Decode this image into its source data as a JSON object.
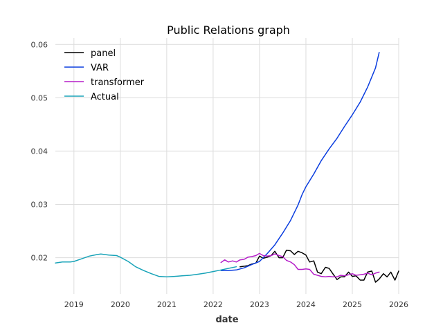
{
  "chart_data": {
    "type": "line",
    "title": "Public Relations graph",
    "xlabel": "date",
    "ylabel": "",
    "xlim": [
      2018.6,
      2026.0
    ],
    "ylim": [
      0.0132,
      0.0612
    ],
    "x_ticks": [
      {
        "value": 2019,
        "label": "2019"
      },
      {
        "value": 2020,
        "label": "2020"
      },
      {
        "value": 2021,
        "label": "2021"
      },
      {
        "value": 2022,
        "label": "2022"
      },
      {
        "value": 2023,
        "label": "2023"
      },
      {
        "value": 2024,
        "label": "2024"
      },
      {
        "value": 2025,
        "label": "2025"
      },
      {
        "value": 2026,
        "label": "2026"
      }
    ],
    "y_ticks": [
      {
        "value": 0.02,
        "label": "0.02"
      },
      {
        "value": 0.03,
        "label": "0.03"
      },
      {
        "value": 0.04,
        "label": "0.04"
      },
      {
        "value": 0.05,
        "label": "0.05"
      },
      {
        "value": 0.06,
        "label": "0.06"
      }
    ],
    "grid": true,
    "legend": "top-left",
    "series": [
      {
        "name": "panel",
        "color": "#000000",
        "points": [
          [
            2022.58,
            0.0183
          ],
          [
            2022.67,
            0.0184
          ],
          [
            2022.75,
            0.0185
          ],
          [
            2022.83,
            0.0188
          ],
          [
            2022.92,
            0.019
          ],
          [
            2023.0,
            0.0203
          ],
          [
            2023.08,
            0.0199
          ],
          [
            2023.17,
            0.0201
          ],
          [
            2023.25,
            0.0204
          ],
          [
            2023.33,
            0.0212
          ],
          [
            2023.42,
            0.02
          ],
          [
            2023.5,
            0.02
          ],
          [
            2023.58,
            0.0214
          ],
          [
            2023.67,
            0.0213
          ],
          [
            2023.75,
            0.0206
          ],
          [
            2023.83,
            0.0212
          ],
          [
            2023.92,
            0.0209
          ],
          [
            2024.0,
            0.0205
          ],
          [
            2024.08,
            0.0192
          ],
          [
            2024.17,
            0.0194
          ],
          [
            2024.25,
            0.0173
          ],
          [
            2024.33,
            0.017
          ],
          [
            2024.42,
            0.0182
          ],
          [
            2024.5,
            0.018
          ],
          [
            2024.58,
            0.017
          ],
          [
            2024.67,
            0.0159
          ],
          [
            2024.75,
            0.0164
          ],
          [
            2024.83,
            0.0164
          ],
          [
            2024.92,
            0.0173
          ],
          [
            2025.0,
            0.0165
          ],
          [
            2025.08,
            0.0166
          ],
          [
            2025.17,
            0.0158
          ],
          [
            2025.25,
            0.0158
          ],
          [
            2025.33,
            0.0173
          ],
          [
            2025.42,
            0.0175
          ],
          [
            2025.5,
            0.0154
          ],
          [
            2025.58,
            0.016
          ],
          [
            2025.67,
            0.017
          ],
          [
            2025.75,
            0.0164
          ],
          [
            2025.83,
            0.0173
          ],
          [
            2025.92,
            0.0158
          ],
          [
            2026.0,
            0.0175
          ]
        ]
      },
      {
        "name": "VAR",
        "color": "#0a3ddf",
        "points": [
          [
            2022.17,
            0.0176
          ],
          [
            2022.33,
            0.0176
          ],
          [
            2022.5,
            0.0177
          ],
          [
            2022.67,
            0.0181
          ],
          [
            2022.83,
            0.0187
          ],
          [
            2023.0,
            0.0193
          ],
          [
            2023.17,
            0.0208
          ],
          [
            2023.33,
            0.0224
          ],
          [
            2023.5,
            0.0246
          ],
          [
            2023.67,
            0.027
          ],
          [
            2023.83,
            0.0299
          ],
          [
            2023.92,
            0.0319
          ],
          [
            2024.0,
            0.0333
          ],
          [
            2024.17,
            0.0357
          ],
          [
            2024.33,
            0.0382
          ],
          [
            2024.5,
            0.0404
          ],
          [
            2024.67,
            0.0424
          ],
          [
            2024.83,
            0.0446
          ],
          [
            2025.0,
            0.0468
          ],
          [
            2025.17,
            0.0492
          ],
          [
            2025.33,
            0.052
          ],
          [
            2025.5,
            0.0556
          ],
          [
            2025.58,
            0.0585
          ]
        ]
      },
      {
        "name": "transformer",
        "color": "#b51ec9",
        "points": [
          [
            2022.17,
            0.0191
          ],
          [
            2022.25,
            0.0196
          ],
          [
            2022.33,
            0.0192
          ],
          [
            2022.42,
            0.0194
          ],
          [
            2022.5,
            0.0192
          ],
          [
            2022.58,
            0.0196
          ],
          [
            2022.67,
            0.0197
          ],
          [
            2022.75,
            0.0201
          ],
          [
            2022.83,
            0.0202
          ],
          [
            2022.92,
            0.0204
          ],
          [
            2023.0,
            0.0208
          ],
          [
            2023.08,
            0.0204
          ],
          [
            2023.17,
            0.0203
          ],
          [
            2023.25,
            0.0204
          ],
          [
            2023.33,
            0.0207
          ],
          [
            2023.42,
            0.0204
          ],
          [
            2023.5,
            0.0202
          ],
          [
            2023.58,
            0.0195
          ],
          [
            2023.67,
            0.0192
          ],
          [
            2023.75,
            0.0187
          ],
          [
            2023.83,
            0.0178
          ],
          [
            2023.92,
            0.0178
          ],
          [
            2024.0,
            0.0179
          ],
          [
            2024.08,
            0.0178
          ],
          [
            2024.17,
            0.0169
          ],
          [
            2024.25,
            0.0167
          ],
          [
            2024.33,
            0.0165
          ],
          [
            2024.42,
            0.0164
          ],
          [
            2024.5,
            0.0165
          ],
          [
            2024.58,
            0.0164
          ],
          [
            2024.67,
            0.0164
          ],
          [
            2024.75,
            0.0167
          ],
          [
            2024.83,
            0.0166
          ],
          [
            2024.92,
            0.0168
          ],
          [
            2025.0,
            0.017
          ],
          [
            2025.08,
            0.0167
          ],
          [
            2025.17,
            0.0168
          ],
          [
            2025.25,
            0.0169
          ],
          [
            2025.33,
            0.0171
          ],
          [
            2025.42,
            0.0168
          ],
          [
            2025.5,
            0.0171
          ],
          [
            2025.58,
            0.0173
          ]
        ]
      },
      {
        "name": "Actual",
        "color": "#18a3b8",
        "points": [
          [
            2018.6,
            0.019
          ],
          [
            2018.75,
            0.0192
          ],
          [
            2018.92,
            0.0192
          ],
          [
            2019.0,
            0.0193
          ],
          [
            2019.17,
            0.0198
          ],
          [
            2019.33,
            0.0203
          ],
          [
            2019.5,
            0.0206
          ],
          [
            2019.58,
            0.0207
          ],
          [
            2019.75,
            0.0205
          ],
          [
            2019.92,
            0.0204
          ],
          [
            2020.0,
            0.0201
          ],
          [
            2020.17,
            0.0193
          ],
          [
            2020.33,
            0.0183
          ],
          [
            2020.5,
            0.0176
          ],
          [
            2020.67,
            0.017
          ],
          [
            2020.83,
            0.0165
          ],
          [
            2021.0,
            0.0164
          ],
          [
            2021.17,
            0.0165
          ],
          [
            2021.33,
            0.0166
          ],
          [
            2021.5,
            0.0167
          ],
          [
            2021.67,
            0.0169
          ],
          [
            2021.83,
            0.0171
          ],
          [
            2022.0,
            0.0174
          ],
          [
            2022.17,
            0.0177
          ],
          [
            2022.33,
            0.018
          ],
          [
            2022.5,
            0.0183
          ]
        ]
      }
    ]
  }
}
